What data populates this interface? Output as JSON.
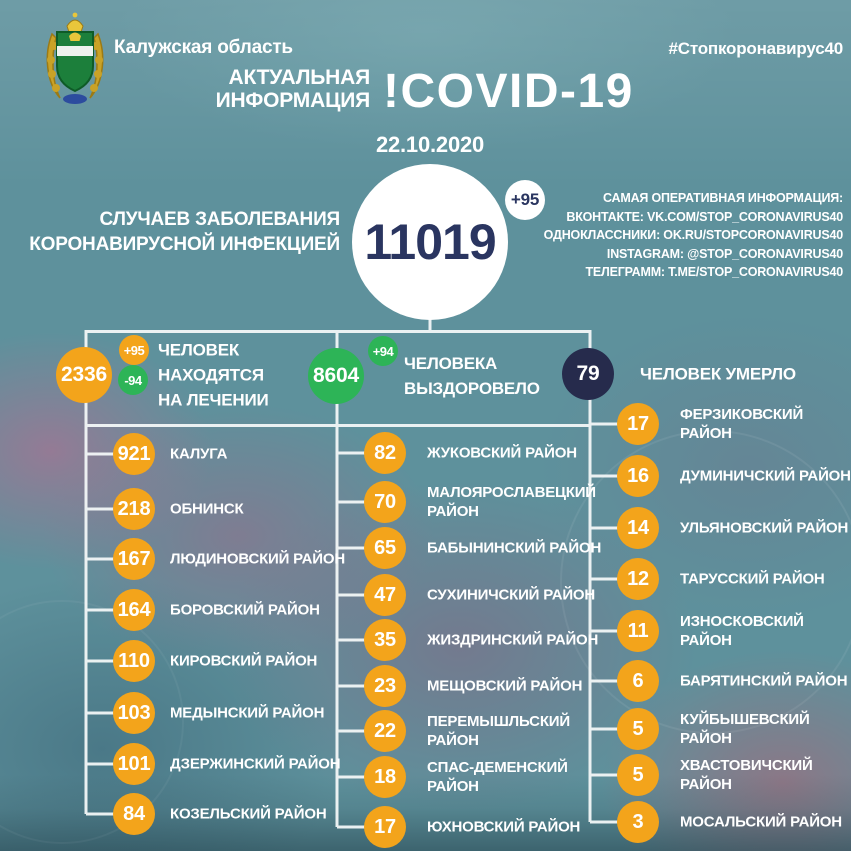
{
  "header": {
    "region": "Калужская область",
    "hashtag": "#Стопкоронавирус40",
    "title": "АКТУАЛЬНАЯ\nИНФОРМАЦИЯ",
    "covid": "!COVID-19",
    "date": "22.10.2020"
  },
  "total": {
    "value": "11019",
    "delta": "+95",
    "label": "СЛУЧАЕВ ЗАБОЛЕВАНИЯ\nКОРОНАВИРУСНОЙ ИНФЕКЦИЕЙ"
  },
  "social": {
    "heading": "САМАЯ ОПЕРАТИВНАЯ ИНФОРМАЦИЯ:",
    "lines": [
      "ВКОНТАКТЕ: VK.COM/STOP_CORONAVIRUS40",
      "ОДНОКЛАССНИКИ: OK.RU/STOPCORONAVIRUS40",
      "INSTAGRAM: @STOP_CORONAVIRUS40",
      "ТЕЛЕГРАММ: T.ME/STOP_CORONAVIRUS40"
    ]
  },
  "stats": [
    {
      "value": "2336",
      "delta_up": "+95",
      "delta_down": "-94",
      "label": "ЧЕЛОВЕК\nНАХОДЯТСЯ\nНА ЛЕЧЕНИИ"
    },
    {
      "value": "8604",
      "delta_up": "+94",
      "label": "ЧЕЛОВЕКА\nВЫЗДОРОВЕЛО"
    },
    {
      "value": "79",
      "label": "ЧЕЛОВЕК УМЕРЛО"
    }
  ],
  "districts": [
    {
      "items": [
        {
          "value": "921",
          "label": "КАЛУГА"
        },
        {
          "value": "218",
          "label": "ОБНИНСК"
        },
        {
          "value": "167",
          "label": "ЛЮДИНОВСКИЙ РАЙОН"
        },
        {
          "value": "164",
          "label": "БОРОВСКИЙ РАЙОН"
        },
        {
          "value": "110",
          "label": "КИРОВСКИЙ РАЙОН"
        },
        {
          "value": "103",
          "label": "МЕДЫНСКИЙ РАЙОН"
        },
        {
          "value": "101",
          "label": "ДЗЕРЖИНСКИЙ РАЙОН"
        },
        {
          "value": "84",
          "label": "КОЗЕЛЬСКИЙ РАЙОН"
        }
      ]
    },
    {
      "items": [
        {
          "value": "82",
          "label": "ЖУКОВСКИЙ РАЙОН"
        },
        {
          "value": "70",
          "label": "МАЛОЯРОСЛАВЕЦКИЙ\nРАЙОН"
        },
        {
          "value": "65",
          "label": "БАБЫНИНСКИЙ РАЙОН"
        },
        {
          "value": "47",
          "label": "СУХИНИЧСКИЙ РАЙОН"
        },
        {
          "value": "35",
          "label": "ЖИЗДРИНСКИЙ РАЙОН"
        },
        {
          "value": "23",
          "label": "МЕЩОВСКИЙ РАЙОН"
        },
        {
          "value": "22",
          "label": "ПЕРЕМЫШЛЬСКИЙ\nРАЙОН"
        },
        {
          "value": "18",
          "label": "СПАС-ДЕМЕНСКИЙ\nРАЙОН"
        },
        {
          "value": "17",
          "label": "ЮХНОВСКИЙ РАЙОН"
        }
      ]
    },
    {
      "items": [
        {
          "value": "17",
          "label": "ФЕРЗИКОВСКИЙ РАЙОН"
        },
        {
          "value": "16",
          "label": "ДУМИНИЧСКИЙ РАЙОН"
        },
        {
          "value": "14",
          "label": "УЛЬЯНОВСКИЙ РАЙОН"
        },
        {
          "value": "12",
          "label": "ТАРУССКИЙ РАЙОН"
        },
        {
          "value": "11",
          "label": "ИЗНОСКОВСКИЙ РАЙОН"
        },
        {
          "value": "6",
          "label": "БАРЯТИНСКИЙ РАЙОН"
        },
        {
          "value": "5",
          "label": "КУЙБЫШЕВСКИЙ РАЙОН"
        },
        {
          "value": "5",
          "label": "ХВАСТОВИЧСКИЙ РАЙОН"
        },
        {
          "value": "3",
          "label": "МОСАЛЬСКИЙ РАЙОН"
        }
      ]
    }
  ],
  "colors": {
    "orange": "#F3A41B",
    "green": "#2DB457",
    "navy": "#262B4C",
    "number": "#2A3560",
    "background": "#5E919C",
    "white": "#FFFFFF"
  }
}
